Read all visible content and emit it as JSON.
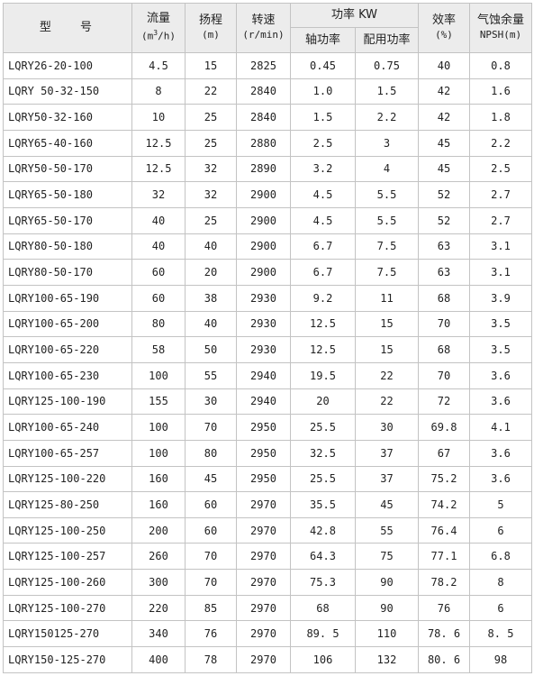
{
  "headers": {
    "model": "型  号",
    "flow": {
      "title": "流量",
      "unit_prefix": "(m",
      "unit_sup": "3",
      "unit_suffix": "/h)"
    },
    "head": {
      "title": "扬程",
      "unit": "(m)"
    },
    "speed": {
      "title": "转速",
      "unit": "(r/min)"
    },
    "power": {
      "title": "功率 KW",
      "shaft": "轴功率",
      "matched": "配用功率"
    },
    "efficiency": {
      "title": "效率",
      "unit": "(%)"
    },
    "npsh": {
      "title": "气蚀余量",
      "unit": "NPSH(m)"
    }
  },
  "rows": [
    [
      "LQRY26-20-100",
      "4.5",
      "15",
      "2825",
      "0.45",
      "0.75",
      "40",
      "0.8"
    ],
    [
      "LQRY 50-32-150",
      "8",
      "22",
      "2840",
      "1.0",
      "1.5",
      "42",
      "1.6"
    ],
    [
      "LQRY50-32-160",
      "10",
      "25",
      "2840",
      "1.5",
      "2.2",
      "42",
      "1.8"
    ],
    [
      "LQRY65-40-160",
      "12.5",
      "25",
      "2880",
      "2.5",
      "3",
      "45",
      "2.2"
    ],
    [
      "LQRY50-50-170",
      "12.5",
      "32",
      "2890",
      "3.2",
      "4",
      "45",
      "2.5"
    ],
    [
      "LQRY65-50-180",
      "32",
      "32",
      "2900",
      "4.5",
      "5.5",
      "52",
      "2.7"
    ],
    [
      "LQRY65-50-170",
      "40",
      "25",
      "2900",
      "4.5",
      "5.5",
      "52",
      "2.7"
    ],
    [
      "LQRY80-50-180",
      "40",
      "40",
      "2900",
      "6.7",
      "7.5",
      "63",
      "3.1"
    ],
    [
      "LQRY80-50-170",
      "60",
      "20",
      "2900",
      "6.7",
      "7.5",
      "63",
      "3.1"
    ],
    [
      "LQRY100-65-190",
      "60",
      "38",
      "2930",
      "9.2",
      "11",
      "68",
      "3.9"
    ],
    [
      "LQRY100-65-200",
      "80",
      "40",
      "2930",
      "12.5",
      "15",
      "70",
      "3.5"
    ],
    [
      "LQRY100-65-220",
      "58",
      "50",
      "2930",
      "12.5",
      "15",
      "68",
      "3.5"
    ],
    [
      "LQRY100-65-230",
      "100",
      "55",
      "2940",
      "19.5",
      "22",
      "70",
      "3.6"
    ],
    [
      "LQRY125-100-190",
      "155",
      "30",
      "2940",
      "20",
      "22",
      "72",
      "3.6"
    ],
    [
      "LQRY100-65-240",
      "100",
      "70",
      "2950",
      "25.5",
      "30",
      "69.8",
      "4.1"
    ],
    [
      "LQRY100-65-257",
      "100",
      "80",
      "2950",
      "32.5",
      "37",
      "67",
      "3.6"
    ],
    [
      "LQRY125-100-220",
      "160",
      "45",
      "2950",
      "25.5",
      "37",
      "75.2",
      "3.6"
    ],
    [
      "LQRY125-80-250",
      "160",
      "60",
      "2970",
      "35.5",
      "45",
      "74.2",
      "5"
    ],
    [
      "LQRY125-100-250",
      "200",
      "60",
      "2970",
      "42.8",
      "55",
      "76.4",
      "6"
    ],
    [
      "LQRY125-100-257",
      "260",
      "70",
      "2970",
      "64.3",
      "75",
      "77.1",
      "6.8"
    ],
    [
      "LQRY125-100-260",
      "300",
      "70",
      "2970",
      "75.3",
      "90",
      "78.2",
      "8"
    ],
    [
      "LQRY125-100-270",
      "220",
      "85",
      "2970",
      "68",
      "90",
      "76",
      "6"
    ],
    [
      "LQRY150125-270",
      "340",
      "76",
      "2970",
      "89. 5",
      "110",
      "78. 6",
      "8. 5"
    ],
    [
      "LQRY150-125-270",
      "400",
      "78",
      "2970",
      "106",
      "132",
      "80. 6",
      "98"
    ]
  ]
}
